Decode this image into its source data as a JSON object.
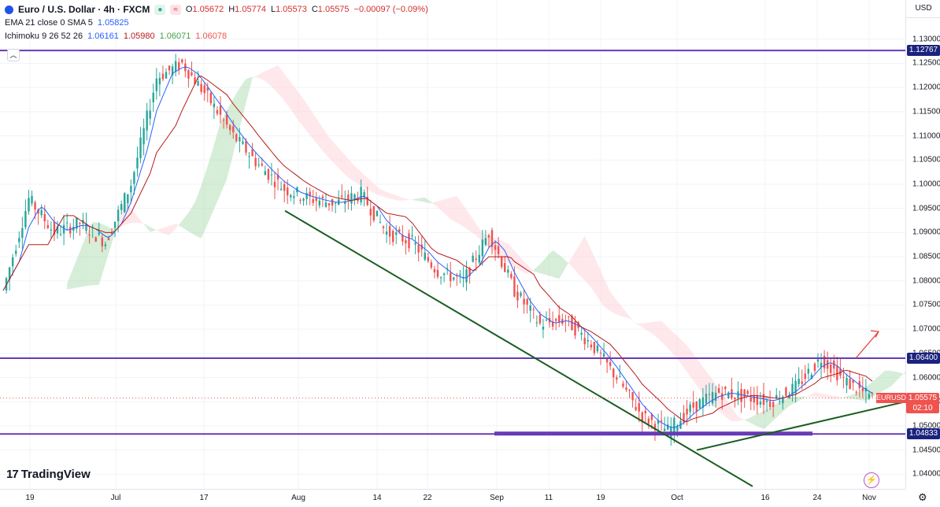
{
  "header": {
    "symbol_title": "Euro / U.S. Dollar · 4h · FXCM",
    "open_label": "O",
    "open": "1.05672",
    "high_label": "H",
    "high": "1.05774",
    "low_label": "L",
    "low": "1.05573",
    "close_label": "C",
    "close": "1.05575",
    "change": "−0.00097 (−0.09%)",
    "ema_label": "EMA 21 close 0 SMA 5",
    "ema_value": "1.05825",
    "ichimoku_label": "Ichimoku 9 26 52 26",
    "ichimoku_values": [
      "1.06161",
      "1.05980",
      "1.06071",
      "1.06078"
    ],
    "ichimoku_colors": [
      "#2962ff",
      "#b71c1c",
      "#43a047",
      "#ef5350"
    ]
  },
  "currency": "USD",
  "price_current": {
    "value": "1.05575",
    "countdown": "02:10",
    "symbol": "EURUSD"
  },
  "brand": "TradingView",
  "colors": {
    "level_line": "#673ab7",
    "trend_line": "#1b5e20",
    "bull": "#26a69a",
    "bear": "#ef5350",
    "tenkan": "#2962ff",
    "kijun": "#b71c1c",
    "cloud_bull": "#a5d6a7",
    "cloud_bear": "#ffcdd2",
    "arrow": "#e53935"
  },
  "chart_data": {
    "type": "line",
    "title": "Euro / U.S. Dollar · 4h · FXCM",
    "xlabel": "",
    "ylabel": "",
    "ylim": [
      1.0355,
      1.1355
    ],
    "x_ticks": [
      "19",
      "Jul",
      "17",
      "Aug",
      "14",
      "22",
      "Sep",
      "11",
      "19",
      "Oct",
      "16",
      "24",
      "Nov"
    ],
    "y_ticks": [
      "1.13000",
      "1.12500",
      "1.12000",
      "1.11500",
      "1.11000",
      "1.10500",
      "1.10000",
      "1.09500",
      "1.09000",
      "1.08500",
      "1.08000",
      "1.07500",
      "1.07000",
      "1.06500",
      "1.06000",
      "1.05500",
      "1.05000",
      "1.04500",
      "1.04000"
    ],
    "horizontal_levels": [
      {
        "label": "1.12767",
        "value": 1.12767
      },
      {
        "label": "1.06400",
        "value": 1.064
      },
      {
        "label": "1.04833",
        "value": 1.04833
      }
    ],
    "series": [
      {
        "name": "EURUSD",
        "x": [
          "Jun 13",
          "Jun 19",
          "Jun 25",
          "Jul 1",
          "Jul 5",
          "Jul 10",
          "Jul 14",
          "Jul 17",
          "Jul 20",
          "Jul 24",
          "Jul 27",
          "Jul 31",
          "Aug 4",
          "Aug 9",
          "Aug 14",
          "Aug 18",
          "Aug 22",
          "Aug 26",
          "Aug 30",
          "Sep 3",
          "Sep 7",
          "Sep 11",
          "Sep 15",
          "Sep 19",
          "Sep 23",
          "Sep 27",
          "Oct 1",
          "Oct 4",
          "Oct 8",
          "Oct 12",
          "Oct 16",
          "Oct 20",
          "Oct 24",
          "Oct 27",
          "Oct 31"
        ],
        "values": [
          1.078,
          1.097,
          1.09,
          1.092,
          1.088,
          1.1,
          1.122,
          1.125,
          1.118,
          1.11,
          1.104,
          1.099,
          1.097,
          1.096,
          1.098,
          1.09,
          1.088,
          1.082,
          1.08,
          1.09,
          1.078,
          1.071,
          1.072,
          1.067,
          1.06,
          1.052,
          1.049,
          1.054,
          1.057,
          1.056,
          1.055,
          1.058,
          1.064,
          1.059,
          1.05575
        ]
      }
    ]
  }
}
